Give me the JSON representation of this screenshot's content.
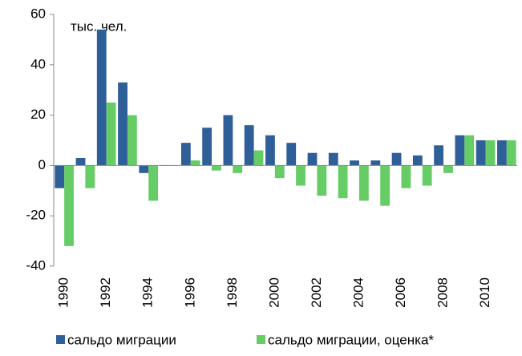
{
  "chart_data": {
    "type": "bar",
    "annotation": "тыс. чел.",
    "categories": [
      "1990",
      null,
      "1992",
      null,
      "1994",
      null,
      "1996",
      null,
      "1998",
      null,
      "2000",
      null,
      "2002",
      null,
      "2004",
      null,
      "2006",
      null,
      "2008",
      null,
      "2010",
      null
    ],
    "series": [
      {
        "name": "сальдо миграции",
        "color": "#2f5f98",
        "values": [
          -9,
          3,
          54,
          33,
          -3,
          0,
          9,
          15,
          20,
          16,
          12,
          9,
          5,
          5,
          2,
          2,
          5,
          4,
          8,
          12,
          10,
          10
        ]
      },
      {
        "name": "сальдо миграции, оценка*",
        "color": "#66cc66",
        "values": [
          -32,
          -9,
          25,
          20,
          -14,
          0,
          2,
          -2,
          -3,
          6,
          -5,
          -8,
          -12,
          -13,
          -14,
          -16,
          -9,
          -8,
          -3,
          12,
          10,
          10
        ]
      }
    ],
    "ylim": [
      -40,
      60
    ],
    "yticks": [
      -40,
      -20,
      0,
      20,
      40,
      60
    ],
    "grid": false
  }
}
